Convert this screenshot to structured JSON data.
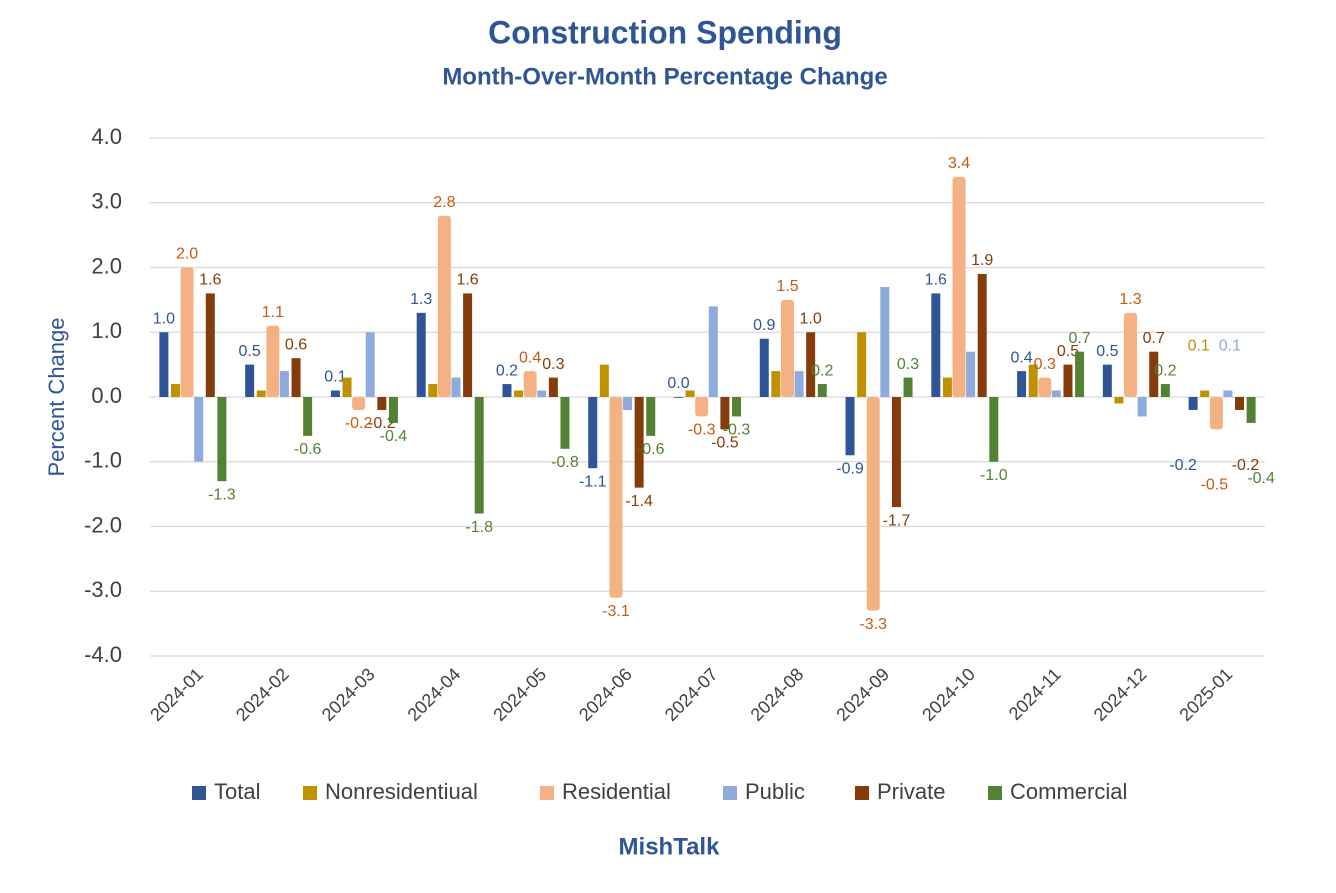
{
  "chart_data": {
    "type": "bar",
    "title": "Construction Spending",
    "subtitle": "Month-Over-Month Percentage Change",
    "y_label": "Percent Change",
    "footer": "MishTalk",
    "categories": [
      "2024-01",
      "2024-02",
      "2024-03",
      "2024-04",
      "2024-05",
      "2024-06",
      "2024-07",
      "2024-08",
      "2024-09",
      "2024-10",
      "2024-11",
      "2024-12",
      "2025-01"
    ],
    "ylim": [
      -4,
      4
    ],
    "yticks": [
      {
        "value": -4,
        "label": "-4.0"
      },
      {
        "value": -3,
        "label": "-3.0"
      },
      {
        "value": -2,
        "label": "-2.0"
      },
      {
        "value": -1,
        "label": "-1.0"
      },
      {
        "value": 0,
        "label": "0.0"
      },
      {
        "value": 1,
        "label": "1.0"
      },
      {
        "value": 2,
        "label": "2.0"
      },
      {
        "value": 3,
        "label": "3.0"
      },
      {
        "value": 4,
        "label": "4.0"
      }
    ],
    "grid": true,
    "series": [
      {
        "name": "Total",
        "color": "#2f5597",
        "label_color": "#2f5597",
        "values": [
          1.0,
          0.5,
          0.1,
          1.3,
          0.2,
          -1.1,
          0.0,
          0.9,
          -0.9,
          1.6,
          0.4,
          0.5,
          -0.2
        ],
        "value_labels": [
          "1.0",
          "0.5",
          "0.1",
          "1.3",
          "0.2",
          "-1.1",
          "0.0",
          "0.9",
          "-0.9",
          "1.6",
          "0.4",
          "0.5",
          "-0.2"
        ]
      },
      {
        "name": "Nonresidentiual",
        "color": "#bf9000",
        "label_color": "#bf9000",
        "values": [
          0.2,
          0.1,
          0.3,
          0.2,
          0.1,
          0.5,
          0.1,
          0.4,
          1.0,
          0.3,
          0.5,
          -0.1,
          0.1
        ],
        "value_labels": [
          null,
          null,
          null,
          null,
          null,
          null,
          null,
          null,
          null,
          null,
          null,
          null,
          "0.1"
        ]
      },
      {
        "name": "Residential",
        "color": "#f4b183",
        "label_color": "#c55a11",
        "values": [
          2.0,
          1.1,
          -0.2,
          2.8,
          0.4,
          -3.1,
          -0.3,
          1.5,
          -3.3,
          3.4,
          0.3,
          1.3,
          -0.5
        ],
        "value_labels": [
          "2.0",
          "1.1",
          "-0.2",
          "2.8",
          "0.4",
          "-3.1",
          "-0.3",
          "1.5",
          "-3.3",
          "3.4",
          "0.3",
          "1.3",
          "-0.5"
        ]
      },
      {
        "name": "Public",
        "color": "#8faadc",
        "label_color": "#8faadc",
        "values": [
          -1.0,
          0.4,
          1.0,
          0.3,
          0.1,
          -0.2,
          1.4,
          0.4,
          1.7,
          0.7,
          0.1,
          -0.3,
          0.1
        ],
        "value_labels": [
          null,
          null,
          null,
          null,
          null,
          null,
          null,
          null,
          null,
          null,
          null,
          null,
          "0.1"
        ]
      },
      {
        "name": "Private",
        "color": "#843c0c",
        "label_color": "#843c0c",
        "values": [
          1.6,
          0.6,
          -0.2,
          1.6,
          0.3,
          -1.4,
          -0.5,
          1.0,
          -1.7,
          1.9,
          0.5,
          0.7,
          -0.2
        ],
        "value_labels": [
          "1.6",
          "0.6",
          "-0.2",
          "1.6",
          "0.3",
          "-1.4",
          "-0.5",
          "1.0",
          "-1.7",
          "1.9",
          "0.5",
          "0.7",
          "-0.2"
        ]
      },
      {
        "name": "Commercial",
        "color": "#548235",
        "label_color": "#548235",
        "values": [
          -1.3,
          -0.6,
          -0.4,
          -1.8,
          -0.8,
          -0.6,
          -0.3,
          0.2,
          0.3,
          -1.0,
          0.7,
          0.2,
          -0.4
        ],
        "value_labels": [
          "-1.3",
          "-0.6",
          "-0.4",
          "-1.8",
          "-0.8",
          "-0.6",
          "-0.3",
          "0.2",
          "0.3",
          "-1.0",
          "0.7",
          "0.2",
          "-0.4"
        ]
      }
    ]
  }
}
